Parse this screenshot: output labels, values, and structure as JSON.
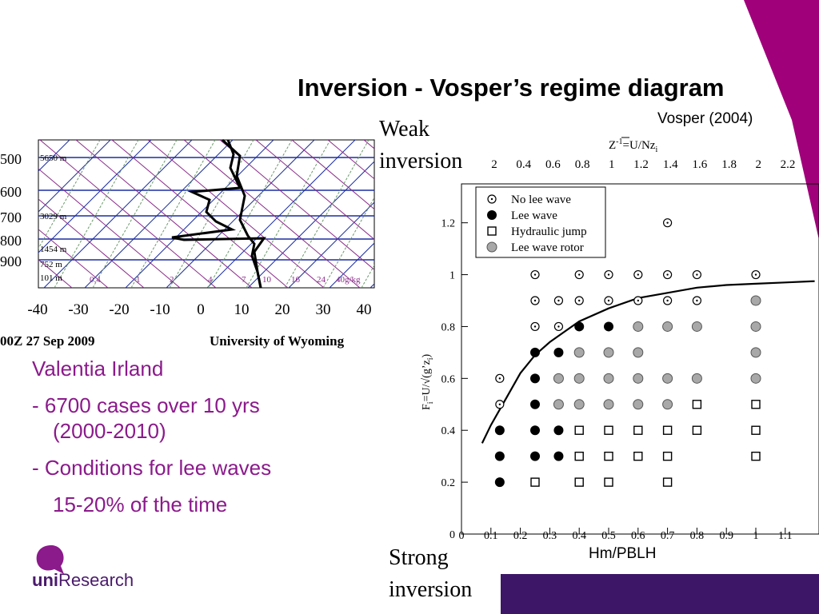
{
  "slide": {
    "title": "Inversion - Vosper’s regime diagram",
    "citation": "Vosper (2004)",
    "weak_note": [
      "Weak",
      "inversion"
    ],
    "strong_note": [
      "Strong",
      "inversion"
    ],
    "bullets": [
      "Valentia Irland",
      "- 6700 cases over 10 yrs",
      "(2000-2010)",
      "- Conditions for lee waves",
      "15-20% of the time"
    ],
    "logo": {
      "part1": "uni",
      "part2": "Research"
    },
    "colors": {
      "accent_magenta": "#a0007a",
      "accent_purple": "#3d1668",
      "bullet_text": "#8b1a8b"
    }
  },
  "sounding": {
    "pressure_labels": [
      "500",
      "600",
      "700",
      "800",
      "900"
    ],
    "height_labels": [
      "5650 m",
      "3029 m",
      "1454 m",
      "752 m",
      "101 m"
    ],
    "mixing_ratio_labels": [
      "0.4",
      "1",
      "2",
      "4",
      "7",
      "10",
      "16",
      "24",
      "40g/kg"
    ],
    "temperature_labels": [
      "-40",
      "-30",
      "-20",
      "-10",
      "0",
      "10",
      "20",
      "30",
      "40"
    ],
    "footer_left": "00Z 27 Sep 2009",
    "footer_right": "University of Wyoming"
  },
  "chart_data": {
    "type": "scatter",
    "xlabel": "Hm/PBLH",
    "ylabel": "F_i = U/√(g’z_i)",
    "top_axis_label": "Z^-1 = U/Nz_i",
    "xlim": [
      0,
      1.2
    ],
    "ylim": [
      0,
      1.35
    ],
    "x_ticks": [
      "0",
      "0.1",
      "0.2",
      "0.3",
      "0.4",
      "0.5",
      "0.6",
      "0.7",
      "0.8",
      "0.9",
      "1",
      "1.1"
    ],
    "y_ticks": [
      "0",
      "0.2",
      "0.4",
      "0.6",
      "0.8",
      "1",
      "1.2"
    ],
    "top_ticks": [
      "2",
      "0.4",
      "0.6",
      "0.8",
      "1",
      "1.2",
      "1.4",
      "1.6",
      "1.8",
      "2",
      "2.2"
    ],
    "legend": [
      {
        "key": "none",
        "label": "No lee wave"
      },
      {
        "key": "lee",
        "label": "Lee wave"
      },
      {
        "key": "jump",
        "label": "Hydraulic jump"
      },
      {
        "key": "rotor",
        "label": "Lee wave rotor"
      }
    ],
    "legend_position": "top-left",
    "series": [
      {
        "key": "none",
        "points": [
          [
            0.7,
            1.2
          ],
          [
            0.25,
            1
          ],
          [
            0.4,
            1
          ],
          [
            0.5,
            1
          ],
          [
            0.6,
            1
          ],
          [
            0.7,
            1
          ],
          [
            0.8,
            1
          ],
          [
            1,
            1
          ],
          [
            0.25,
            0.9
          ],
          [
            0.33,
            0.9
          ],
          [
            0.4,
            0.9
          ],
          [
            0.5,
            0.9
          ],
          [
            0.6,
            0.9
          ],
          [
            0.7,
            0.9
          ],
          [
            0.8,
            0.9
          ],
          [
            0.25,
            0.8
          ],
          [
            0.33,
            0.8
          ],
          [
            0.13,
            0.6
          ],
          [
            0.13,
            0.5
          ]
        ]
      },
      {
        "key": "lee",
        "points": [
          [
            0.4,
            0.8
          ],
          [
            0.5,
            0.8
          ],
          [
            0.25,
            0.7
          ],
          [
            0.33,
            0.7
          ],
          [
            0.25,
            0.6
          ],
          [
            0.25,
            0.5
          ],
          [
            0.13,
            0.4
          ],
          [
            0.25,
            0.4
          ],
          [
            0.33,
            0.4
          ],
          [
            0.13,
            0.3
          ],
          [
            0.25,
            0.3
          ],
          [
            0.33,
            0.3
          ],
          [
            0.13,
            0.2
          ]
        ]
      },
      {
        "key": "jump",
        "points": [
          [
            0.8,
            0.5
          ],
          [
            1,
            0.5
          ],
          [
            0.4,
            0.4
          ],
          [
            0.5,
            0.4
          ],
          [
            0.6,
            0.4
          ],
          [
            0.7,
            0.4
          ],
          [
            0.8,
            0.4
          ],
          [
            1,
            0.4
          ],
          [
            0.4,
            0.3
          ],
          [
            0.5,
            0.3
          ],
          [
            0.6,
            0.3
          ],
          [
            0.7,
            0.3
          ],
          [
            1,
            0.3
          ],
          [
            0.25,
            0.2
          ],
          [
            0.4,
            0.2
          ],
          [
            0.5,
            0.2
          ],
          [
            0.7,
            0.2
          ]
        ]
      },
      {
        "key": "rotor",
        "points": [
          [
            1,
            0.9
          ],
          [
            0.6,
            0.8
          ],
          [
            0.7,
            0.8
          ],
          [
            0.8,
            0.8
          ],
          [
            1,
            0.8
          ],
          [
            0.4,
            0.7
          ],
          [
            0.5,
            0.7
          ],
          [
            0.6,
            0.7
          ],
          [
            1,
            0.7
          ],
          [
            0.33,
            0.6
          ],
          [
            0.4,
            0.6
          ],
          [
            0.5,
            0.6
          ],
          [
            0.6,
            0.6
          ],
          [
            0.7,
            0.6
          ],
          [
            0.8,
            0.6
          ],
          [
            1,
            0.6
          ],
          [
            0.33,
            0.5
          ],
          [
            0.4,
            0.5
          ],
          [
            0.5,
            0.5
          ],
          [
            0.6,
            0.5
          ],
          [
            0.7,
            0.5
          ]
        ]
      }
    ],
    "boundary_curve": [
      [
        0.07,
        0.35
      ],
      [
        0.1,
        0.42
      ],
      [
        0.15,
        0.52
      ],
      [
        0.2,
        0.62
      ],
      [
        0.25,
        0.69
      ],
      [
        0.3,
        0.74
      ],
      [
        0.35,
        0.78
      ],
      [
        0.4,
        0.82
      ],
      [
        0.5,
        0.87
      ],
      [
        0.6,
        0.91
      ],
      [
        0.7,
        0.93
      ],
      [
        0.8,
        0.95
      ],
      [
        0.9,
        0.96
      ],
      [
        1,
        0.965
      ],
      [
        1.1,
        0.97
      ],
      [
        1.2,
        0.975
      ]
    ]
  }
}
